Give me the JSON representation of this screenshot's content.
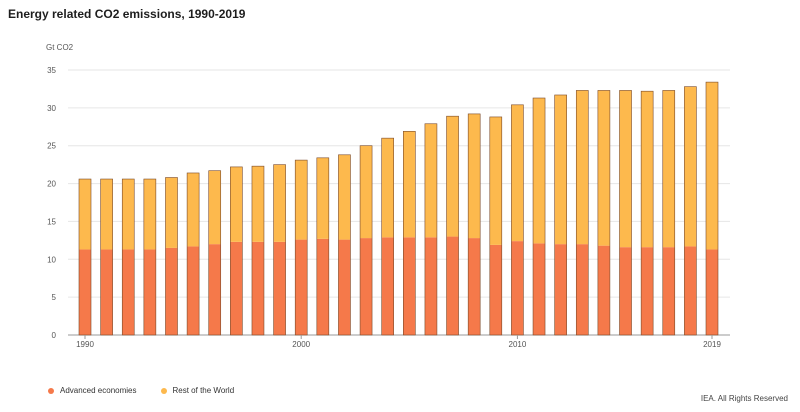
{
  "chart_data": {
    "type": "bar",
    "stacked": true,
    "title": "Energy related CO2 emissions, 1990-2019",
    "ylabel": "Gt CO2",
    "xlabel": "",
    "ylim": [
      0,
      35
    ],
    "yticks": [
      0,
      5,
      10,
      15,
      20,
      25,
      30,
      35
    ],
    "xtick_labels": [
      "1990",
      "2000",
      "2010",
      "2019"
    ],
    "grid": true,
    "legend_position": "bottom-left",
    "categories": [
      "1990",
      "1991",
      "1992",
      "1993",
      "1994",
      "1995",
      "1996",
      "1997",
      "1998",
      "1999",
      "2000",
      "2001",
      "2002",
      "2003",
      "2004",
      "2005",
      "2006",
      "2007",
      "2008",
      "2009",
      "2010",
      "2011",
      "2012",
      "2013",
      "2014",
      "2015",
      "2016",
      "2017",
      "2018",
      "2019"
    ],
    "series": [
      {
        "name": "Advanced economies",
        "color": "#f5794a",
        "values": [
          11.3,
          11.3,
          11.3,
          11.3,
          11.5,
          11.7,
          12.0,
          12.3,
          12.3,
          12.3,
          12.6,
          12.7,
          12.6,
          12.8,
          12.9,
          12.9,
          12.9,
          13.0,
          12.8,
          11.9,
          12.4,
          12.1,
          12.0,
          12.0,
          11.8,
          11.6,
          11.6,
          11.6,
          11.7,
          11.3
        ]
      },
      {
        "name": "Rest of the World",
        "color": "#fdb94d",
        "values": [
          9.3,
          9.3,
          9.3,
          9.3,
          9.3,
          9.7,
          9.7,
          9.9,
          10.0,
          10.2,
          10.5,
          10.7,
          11.2,
          12.2,
          13.1,
          14.0,
          15.0,
          15.9,
          16.4,
          16.9,
          18.0,
          19.2,
          19.7,
          20.3,
          20.5,
          20.7,
          20.6,
          20.7,
          21.1,
          22.1
        ]
      }
    ]
  },
  "legend": {
    "items": [
      {
        "label": "Advanced economies",
        "color": "#f5794a"
      },
      {
        "label": "Rest of the World",
        "color": "#fdb94d"
      }
    ]
  },
  "credit": "IEA. All Rights Reserved"
}
